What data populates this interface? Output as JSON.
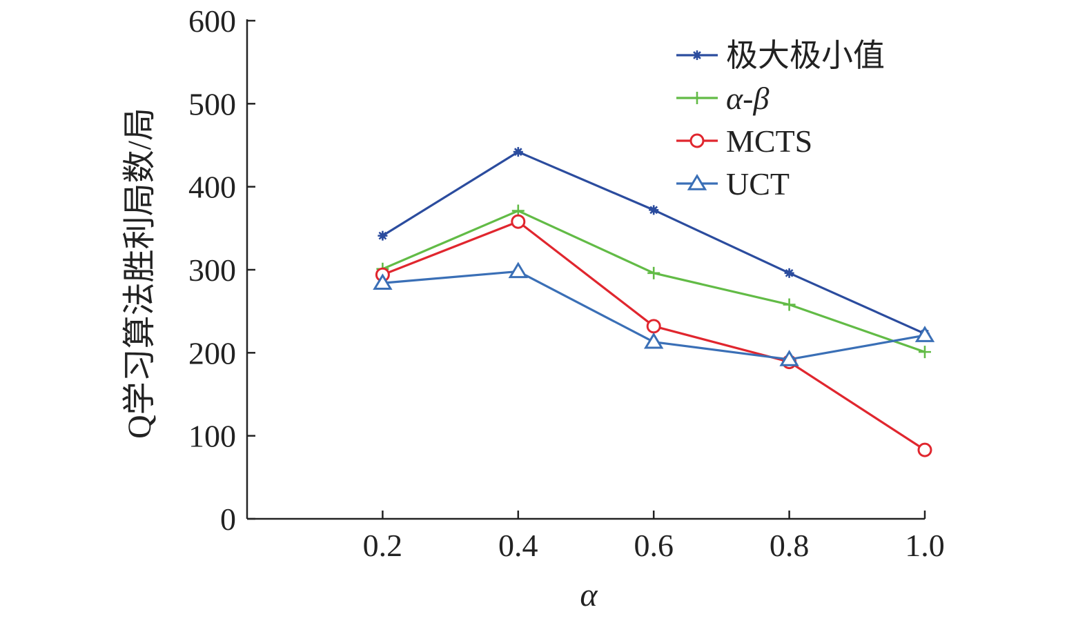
{
  "chart_data": {
    "type": "line",
    "title": "",
    "xlabel": "α",
    "ylabel": "Q学习算法胜利局数/局",
    "x": [
      0.2,
      0.4,
      0.6,
      0.8,
      1.0
    ],
    "x_tick_labels": [
      "0.2",
      "0.4",
      "0.6",
      "0.8",
      "1.0"
    ],
    "xlim": [
      0.0,
      1.0
    ],
    "ylim": [
      0,
      600
    ],
    "y_ticks": [
      0,
      100,
      200,
      300,
      400,
      500,
      600
    ],
    "y_tick_labels": [
      "0",
      "100",
      "200",
      "300",
      "400",
      "500",
      "600"
    ],
    "grid": false,
    "legend_position": "top-right",
    "series": [
      {
        "name": "极大极小值",
        "color": "#2B4C9E",
        "marker": "asterisk",
        "italic": false,
        "values": [
          341,
          442,
          372,
          296,
          223
        ]
      },
      {
        "name": "α-β",
        "color": "#62BB46",
        "marker": "plus",
        "italic": true,
        "values": [
          301,
          371,
          296,
          258,
          201
        ]
      },
      {
        "name": "MCTS",
        "color": "#E0262E",
        "marker": "circle",
        "italic": false,
        "values": [
          294,
          358,
          232,
          189,
          83
        ]
      },
      {
        "name": "UCT",
        "color": "#3A6FB6",
        "marker": "triangle",
        "italic": false,
        "values": [
          284,
          298,
          213,
          192,
          221
        ]
      }
    ]
  }
}
